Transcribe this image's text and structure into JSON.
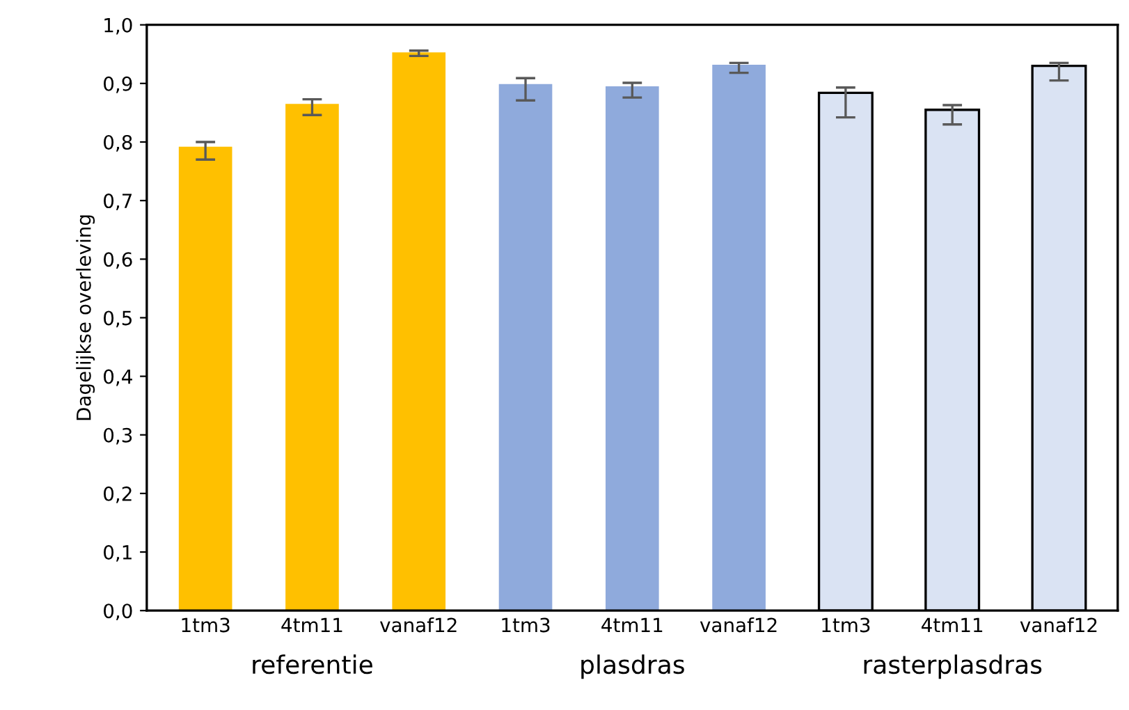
{
  "chart_data": {
    "type": "bar",
    "ylabel": "Dagelijkse overleving",
    "categories": [
      "1tm3",
      "4tm11",
      "vanaf12",
      "1tm3",
      "4tm11",
      "vanaf12",
      "1tm3",
      "4tm11",
      "vanaf12"
    ],
    "values": [
      0.792,
      0.865,
      0.953,
      0.899,
      0.895,
      0.932,
      0.884,
      0.855,
      0.93
    ],
    "errors": [
      [
        0.77,
        0.8
      ],
      [
        0.846,
        0.873
      ],
      [
        0.947,
        0.956
      ],
      [
        0.871,
        0.909
      ],
      [
        0.876,
        0.901
      ],
      [
        0.918,
        0.935
      ],
      [
        0.842,
        0.893
      ],
      [
        0.83,
        0.863
      ],
      [
        0.905,
        0.935
      ]
    ],
    "colors": [
      "#ffc000",
      "#ffc000",
      "#ffc000",
      "#8faadc",
      "#8faadc",
      "#8faadc",
      "#dae3f3",
      "#dae3f3",
      "#dae3f3"
    ],
    "annotations": [
      "referentie",
      "plasdras",
      "rasterplasdras"
    ],
    "ylim": [
      0,
      1
    ],
    "yticks": [
      {
        "value": 0,
        "label": "0,0"
      },
      {
        "value": 0.1,
        "label": "0,1"
      },
      {
        "value": 0.2,
        "label": "0,2"
      },
      {
        "value": 0.3,
        "label": "0,3"
      },
      {
        "value": 0.4,
        "label": "0,4"
      },
      {
        "value": 0.5,
        "label": "0,5"
      },
      {
        "value": 0.6,
        "label": "0,6"
      },
      {
        "value": 0.7,
        "label": "0,7"
      },
      {
        "value": 0.8,
        "label": "0,8"
      },
      {
        "value": 0.9,
        "label": "0,9"
      },
      {
        "value": 1.0,
        "label": "1,0"
      }
    ],
    "grid": false
  }
}
